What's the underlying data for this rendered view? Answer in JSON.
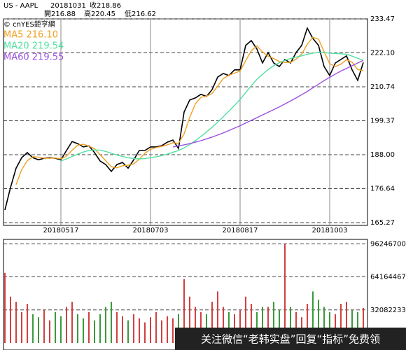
{
  "header": {
    "symbol": "US - AAPL",
    "date": "20181031",
    "close": "收218.86",
    "open": "開216.88",
    "high": "高220.45",
    "low": "低216.62",
    "source": "© cnYES鉅亨網"
  },
  "watermark": "关注微信“老韩实盘”回复“指标”免费领",
  "chart_data": [
    {
      "type": "line",
      "categories": [
        null,
        null,
        null,
        null,
        null,
        null,
        null,
        null,
        null,
        null,
        "20180517",
        null,
        null,
        null,
        null,
        null,
        null,
        null,
        null,
        null,
        null,
        null,
        null,
        null,
        null,
        null,
        "20180703",
        null,
        null,
        null,
        null,
        null,
        null,
        null,
        null,
        null,
        null,
        null,
        null,
        null,
        null,
        null,
        "20180817",
        null,
        null,
        null,
        null,
        null,
        null,
        null,
        null,
        null,
        null,
        null,
        null,
        null,
        null,
        null,
        "20181003",
        null,
        null,
        null,
        null,
        null,
        null
      ],
      "series": [
        {
          "color": "#000000",
          "values": [
            169.5,
            177,
            183.5,
            187,
            188.7,
            187,
            186.3,
            186.8,
            187,
            186.8,
            186.3,
            189.4,
            192.4,
            191.7,
            190.6,
            191,
            188.7,
            185.9,
            184.7,
            182.4,
            184.7,
            185.4,
            183.5,
            186.3,
            189.4,
            189.4,
            190.6,
            190.6,
            191,
            192.2,
            192.9,
            190.1,
            202.3,
            206.3,
            207,
            208.2,
            207.5,
            209.8,
            214,
            215.2,
            214.5,
            216.4,
            216.4,
            224.6,
            226.2,
            223.4,
            218.7,
            222.2,
            218.7,
            217.5,
            219.9,
            218.7,
            222.2,
            224.6,
            230.4,
            226.9,
            224.6,
            217.5,
            214.5,
            218.7,
            219.9,
            221.1,
            216.4,
            212.9,
            218.86
          ]
        },
        {
          "name": "MA5 216.10",
          "color": "#f0a020",
          "values": [
            null,
            null,
            178,
            183,
            186,
            187.3,
            187.2,
            186.8,
            186.8,
            186.9,
            186.6,
            187.5,
            189.5,
            191.2,
            191.5,
            190.9,
            190,
            188,
            186,
            184,
            183.6,
            184.3,
            184.5,
            184.9,
            186.5,
            188.5,
            189.8,
            190.4,
            190.8,
            191.3,
            192,
            191.8,
            195,
            200.5,
            205,
            207.2,
            207.6,
            208.5,
            211,
            213.5,
            214.6,
            215.3,
            216,
            219.5,
            222.8,
            224.4,
            222.4,
            221,
            220.2,
            219.2,
            218.9,
            218.9,
            220,
            221.7,
            225,
            227.3,
            226.7,
            222.5,
            218.5,
            217.5,
            218.3,
            219.8,
            219,
            216.5,
            216.1
          ]
        },
        {
          "name": "MA20 219.54",
          "color": "#50e0a0",
          "values": [
            null,
            null,
            null,
            null,
            null,
            null,
            null,
            null,
            null,
            null,
            185.9,
            186.6,
            187.4,
            188.2,
            188.9,
            189.4,
            189.6,
            189.5,
            189.1,
            188.5,
            187.9,
            187.4,
            187,
            186.7,
            186.6,
            186.7,
            187,
            187.3,
            187.7,
            188.2,
            188.8,
            189.4,
            190.3,
            191.4,
            192.7,
            194.1,
            195.6,
            197.2,
            198.9,
            200.7,
            202.6,
            204.5,
            206.5,
            208.8,
            211.1,
            213.2,
            214.9,
            216.5,
            217.8,
            218.8,
            219.6,
            220.2,
            220.7,
            221.1,
            221.6,
            222,
            222.2,
            222.2,
            222,
            221.9,
            221.8,
            221.6,
            221,
            220.3,
            219.54
          ]
        },
        {
          "name": "MA60 219.55",
          "color": "#9a50e0",
          "values": [
            null,
            null,
            null,
            null,
            null,
            null,
            null,
            null,
            null,
            null,
            null,
            null,
            null,
            null,
            null,
            null,
            null,
            null,
            null,
            null,
            null,
            null,
            null,
            null,
            null,
            null,
            null,
            null,
            null,
            null,
            190.6,
            190.9,
            191.3,
            191.7,
            192.2,
            192.7,
            193.3,
            193.9,
            194.6,
            195.3,
            196.1,
            196.9,
            197.7,
            198.6,
            199.5,
            200.4,
            201.3,
            202.2,
            203.1,
            204,
            205,
            206,
            207,
            208.1,
            209.2,
            210.4,
            211.6,
            212.8,
            213.9,
            215,
            216,
            216.9,
            217.8,
            218.7,
            219.55
          ]
        }
      ],
      "ylim": [
        165.27,
        233.47
      ],
      "yticks": [
        233.47,
        {
          "value": 222.1,
          "label": "222.10"
        },
        210.74,
        199.37,
        {
          "value": 188,
          "label": "188.00"
        },
        176.64,
        165.27
      ],
      "grid": true
    },
    {
      "type": "bar",
      "values": [
        68000000,
        45000000,
        40000000,
        30000000,
        38000000,
        28000000,
        25000000,
        32000000,
        22000000,
        30000000,
        26000000,
        35000000,
        40000000,
        28000000,
        24000000,
        30000000,
        22000000,
        28000000,
        35000000,
        40000000,
        30000000,
        26000000,
        22000000,
        28000000,
        24000000,
        20000000,
        25000000,
        30000000,
        22000000,
        26000000,
        24000000,
        28000000,
        62000000,
        45000000,
        35000000,
        30000000,
        28000000,
        40000000,
        50000000,
        35000000,
        30000000,
        28000000,
        32000000,
        45000000,
        38000000,
        30000000,
        35000000,
        35000000,
        40000000,
        32000000,
        96000000,
        35000000,
        30000000,
        25000000,
        38000000,
        50000000,
        42000000,
        35000000,
        30000000,
        28000000,
        38000000,
        40000000,
        32000000,
        30000000,
        34000000
      ],
      "up_color": "#d04040",
      "down_color": "#3a9a3a",
      "ylim": [
        0,
        100500000
      ],
      "yticks": [
        96246700,
        64164467,
        32082233
      ],
      "grid": true
    }
  ]
}
